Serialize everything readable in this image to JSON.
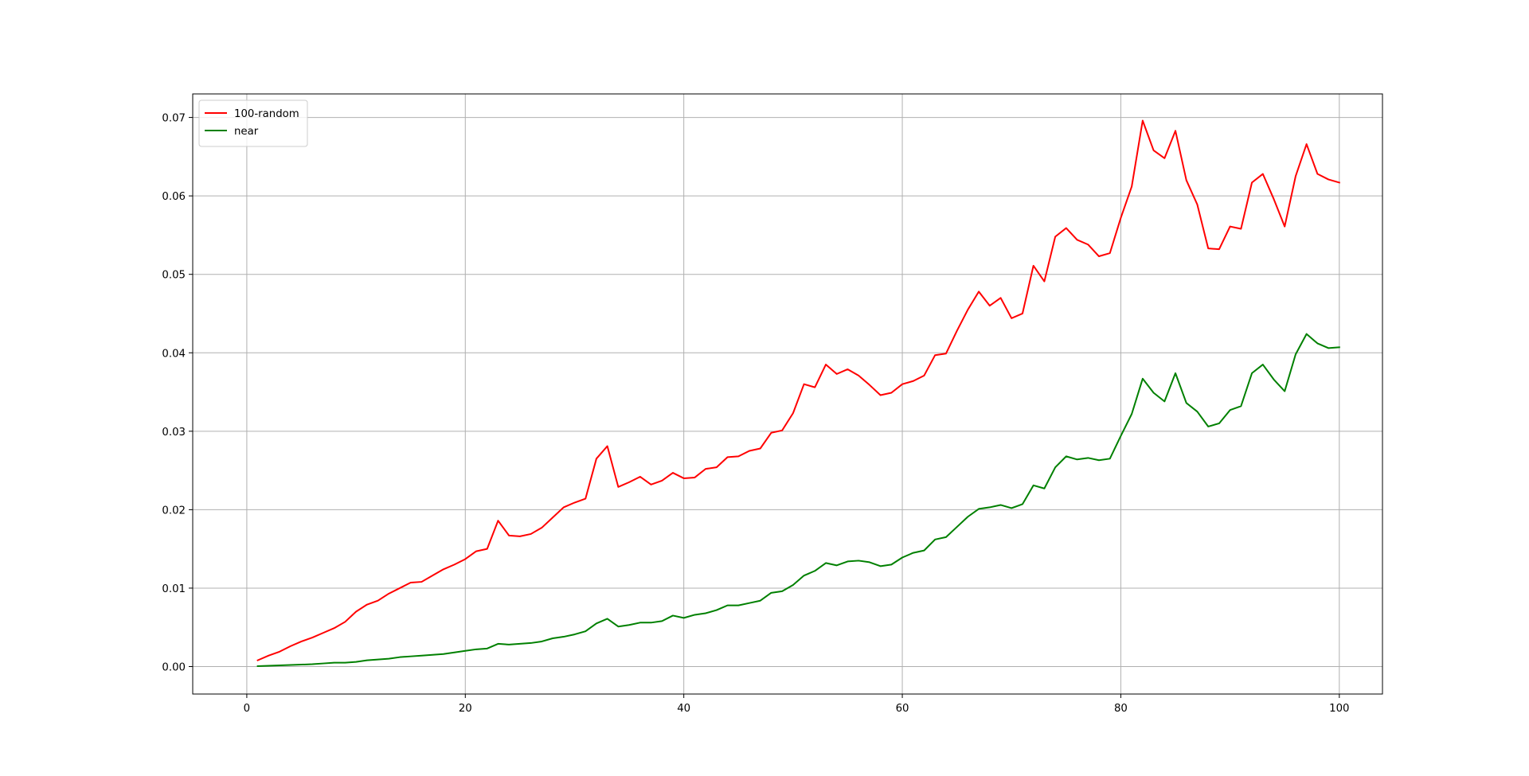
{
  "chart_data": {
    "type": "line",
    "title": "",
    "xlabel": "",
    "ylabel": "",
    "xlim": [
      -4.95,
      103.95
    ],
    "ylim": [
      -0.0035,
      0.073
    ],
    "x_ticks": [
      0,
      20,
      40,
      60,
      80,
      100
    ],
    "y_ticks": [
      0.0,
      0.01,
      0.02,
      0.03,
      0.04,
      0.05,
      0.06,
      0.07
    ],
    "x_tick_labels": [
      "0",
      "20",
      "40",
      "60",
      "80",
      "100"
    ],
    "y_tick_labels": [
      "0.00",
      "0.01",
      "0.02",
      "0.03",
      "0.04",
      "0.05",
      "0.06",
      "0.07"
    ],
    "grid": true,
    "legend_position": "top-left",
    "x": [
      1,
      2,
      3,
      4,
      5,
      6,
      7,
      8,
      9,
      10,
      11,
      12,
      13,
      14,
      15,
      16,
      17,
      18,
      19,
      20,
      21,
      22,
      23,
      24,
      25,
      26,
      27,
      28,
      29,
      30,
      31,
      32,
      33,
      34,
      35,
      36,
      37,
      38,
      39,
      40,
      41,
      42,
      43,
      44,
      45,
      46,
      47,
      48,
      49,
      50,
      51,
      52,
      53,
      54,
      55,
      56,
      57,
      58,
      59,
      60,
      61,
      62,
      63,
      64,
      65,
      66,
      67,
      68,
      69,
      70,
      71,
      72,
      73,
      74,
      75,
      76,
      77,
      78,
      79,
      80,
      81,
      82,
      83,
      84,
      85,
      86,
      87,
      88,
      89,
      90,
      91,
      92,
      93,
      94,
      95,
      96,
      97,
      98,
      99,
      100
    ],
    "series": [
      {
        "name": "100-random",
        "color": "#ff0000",
        "values": [
          0.0008,
          0.0014,
          0.0019,
          0.0026,
          0.0032,
          0.0037,
          0.0043,
          0.0049,
          0.0057,
          0.007,
          0.0079,
          0.0084,
          0.0093,
          0.01,
          0.0107,
          0.0108,
          0.0116,
          0.0124,
          0.013,
          0.0137,
          0.0147,
          0.015,
          0.0186,
          0.0167,
          0.0166,
          0.0169,
          0.0177,
          0.019,
          0.0203,
          0.0209,
          0.0214,
          0.0265,
          0.0281,
          0.0229,
          0.0235,
          0.0242,
          0.0232,
          0.0237,
          0.0247,
          0.024,
          0.0241,
          0.0252,
          0.0254,
          0.0267,
          0.0268,
          0.0275,
          0.0278,
          0.0298,
          0.0301,
          0.0323,
          0.036,
          0.0356,
          0.0385,
          0.0373,
          0.0379,
          0.0371,
          0.0359,
          0.0346,
          0.0349,
          0.036,
          0.0364,
          0.0371,
          0.0397,
          0.0399,
          0.0428,
          0.0455,
          0.0478,
          0.046,
          0.047,
          0.0444,
          0.045,
          0.0511,
          0.0491,
          0.0548,
          0.0559,
          0.0544,
          0.0538,
          0.0523,
          0.0527,
          0.0572,
          0.0612,
          0.0696,
          0.0658,
          0.0648,
          0.0683,
          0.062,
          0.0589,
          0.0533,
          0.0532,
          0.0561,
          0.0558,
          0.0617,
          0.0628,
          0.0596,
          0.0561,
          0.0625,
          0.0666,
          0.0628,
          0.0621,
          0.0617
        ]
      },
      {
        "name": "near",
        "color": "#008000",
        "values": [
          5e-05,
          0.0001,
          0.00015,
          0.0002,
          0.00025,
          0.0003,
          0.0004,
          0.0005,
          0.0005,
          0.0006,
          0.0008,
          0.0009,
          0.001,
          0.0012,
          0.0013,
          0.0014,
          0.0015,
          0.0016,
          0.0018,
          0.002,
          0.0022,
          0.0023,
          0.0029,
          0.0028,
          0.0029,
          0.003,
          0.0032,
          0.0036,
          0.0038,
          0.0041,
          0.0045,
          0.0055,
          0.0061,
          0.0051,
          0.0053,
          0.0056,
          0.0056,
          0.0058,
          0.0065,
          0.0062,
          0.0066,
          0.0068,
          0.0072,
          0.0078,
          0.0078,
          0.0081,
          0.0084,
          0.0094,
          0.0096,
          0.0104,
          0.0116,
          0.0122,
          0.0132,
          0.0129,
          0.0134,
          0.0135,
          0.0133,
          0.0128,
          0.013,
          0.0139,
          0.0145,
          0.0148,
          0.0162,
          0.0165,
          0.0178,
          0.0191,
          0.0201,
          0.0203,
          0.0206,
          0.0202,
          0.0207,
          0.0231,
          0.0227,
          0.0254,
          0.0268,
          0.0264,
          0.0266,
          0.0263,
          0.0265,
          0.0294,
          0.0322,
          0.0367,
          0.0349,
          0.0338,
          0.0374,
          0.0336,
          0.0325,
          0.0306,
          0.031,
          0.0327,
          0.0332,
          0.0374,
          0.0385,
          0.0366,
          0.0351,
          0.0398,
          0.0424,
          0.0412,
          0.0406,
          0.0407
        ]
      }
    ]
  }
}
